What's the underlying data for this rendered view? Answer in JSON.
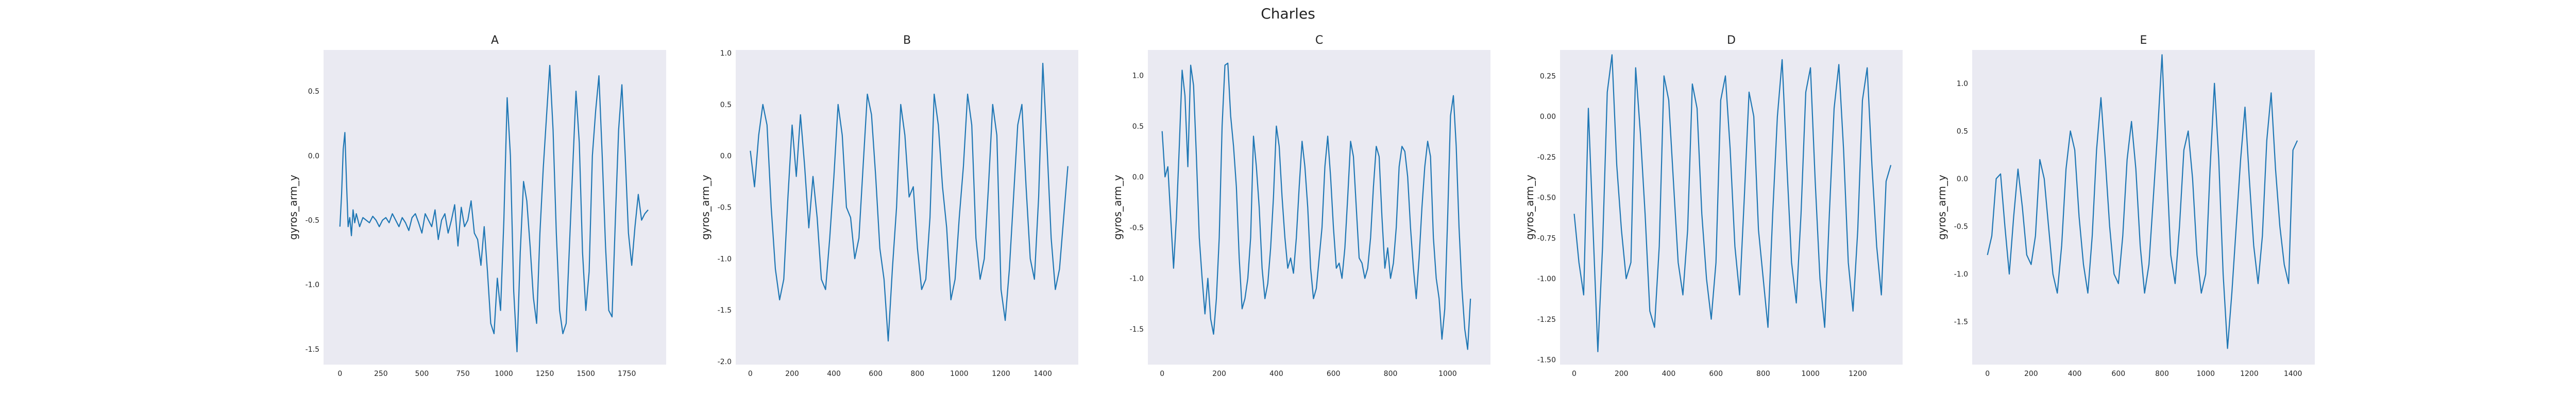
{
  "figure": {
    "suptitle": "Charles"
  },
  "style": {
    "panel_bg": "#eaeaf2",
    "line_color": "#1f77b4",
    "grid": false
  },
  "chart_data": [
    {
      "type": "line",
      "title": "A",
      "xlabel": "",
      "ylabel": "gyros_arm_y",
      "xlim": [
        -100,
        1990
      ],
      "ylim": [
        -1.62,
        0.82
      ],
      "xticks": [
        0,
        250,
        500,
        750,
        1000,
        1250,
        1500,
        1750
      ],
      "yticks": [
        -1.5,
        -1.0,
        -0.5,
        0.0,
        0.5
      ],
      "series": [
        {
          "x": [
            0,
            10,
            20,
            30,
            40,
            50,
            60,
            70,
            80,
            90,
            100,
            120,
            140,
            160,
            180,
            200,
            220,
            240,
            260,
            280,
            300,
            320,
            340,
            360,
            380,
            400,
            420,
            440,
            460,
            480,
            500,
            520,
            540,
            560,
            580,
            600,
            620,
            640,
            660,
            680,
            700,
            720,
            740,
            760,
            780,
            800,
            820,
            840,
            860,
            880,
            900,
            920,
            940,
            960,
            980,
            1000,
            1020,
            1040,
            1060,
            1080,
            1100,
            1120,
            1140,
            1160,
            1180,
            1200,
            1220,
            1240,
            1260,
            1280,
            1300,
            1320,
            1340,
            1360,
            1380,
            1400,
            1420,
            1440,
            1460,
            1480,
            1500,
            1520,
            1540,
            1560,
            1580,
            1600,
            1620,
            1640,
            1660,
            1680,
            1700,
            1720,
            1740,
            1760,
            1780,
            1800,
            1820,
            1840,
            1860,
            1880
          ],
          "y": [
            -0.55,
            -0.3,
            0.05,
            0.18,
            -0.2,
            -0.55,
            -0.48,
            -0.62,
            -0.42,
            -0.52,
            -0.45,
            -0.55,
            -0.48,
            -0.5,
            -0.52,
            -0.47,
            -0.5,
            -0.55,
            -0.5,
            -0.48,
            -0.52,
            -0.45,
            -0.5,
            -0.55,
            -0.48,
            -0.52,
            -0.58,
            -0.48,
            -0.45,
            -0.52,
            -0.6,
            -0.45,
            -0.5,
            -0.55,
            -0.42,
            -0.65,
            -0.5,
            -0.45,
            -0.6,
            -0.5,
            -0.38,
            -0.7,
            -0.4,
            -0.55,
            -0.5,
            -0.35,
            -0.6,
            -0.65,
            -0.85,
            -0.55,
            -0.9,
            -1.3,
            -1.38,
            -0.95,
            -1.2,
            -0.5,
            0.45,
            0.0,
            -1.05,
            -1.52,
            -0.75,
            -0.2,
            -0.35,
            -0.7,
            -1.1,
            -1.3,
            -0.6,
            -0.1,
            0.3,
            0.7,
            0.2,
            -0.6,
            -1.2,
            -1.38,
            -1.3,
            -0.7,
            -0.1,
            0.5,
            0.1,
            -0.75,
            -1.2,
            -0.9,
            0.0,
            0.35,
            0.62,
            0.0,
            -0.7,
            -1.2,
            -1.25,
            -0.5,
            0.2,
            0.55,
            0.0,
            -0.6,
            -0.85,
            -0.55,
            -0.3,
            -0.5,
            -0.45,
            -0.42
          ]
        }
      ]
    },
    {
      "type": "line",
      "title": "B",
      "xlabel": "",
      "ylabel": "gyros_arm_y",
      "xlim": [
        -70,
        1570
      ],
      "ylim": [
        -2.03,
        1.03
      ],
      "xticks": [
        0,
        200,
        400,
        600,
        800,
        1000,
        1200,
        1400
      ],
      "yticks": [
        -2.0,
        -1.5,
        -1.0,
        -0.5,
        0.0,
        0.5,
        1.0
      ],
      "series": [
        {
          "x": [
            0,
            20,
            40,
            60,
            80,
            100,
            120,
            140,
            160,
            180,
            200,
            220,
            240,
            260,
            280,
            300,
            320,
            340,
            360,
            380,
            400,
            420,
            440,
            460,
            480,
            500,
            520,
            540,
            560,
            580,
            600,
            620,
            640,
            660,
            680,
            700,
            720,
            740,
            760,
            780,
            800,
            820,
            840,
            860,
            880,
            900,
            920,
            940,
            960,
            980,
            1000,
            1020,
            1040,
            1060,
            1080,
            1100,
            1120,
            1140,
            1160,
            1180,
            1200,
            1220,
            1240,
            1260,
            1280,
            1300,
            1320,
            1340,
            1360,
            1380,
            1400,
            1420,
            1440,
            1460,
            1480,
            1500,
            1520
          ],
          "y": [
            0.05,
            -0.3,
            0.2,
            0.5,
            0.3,
            -0.5,
            -1.1,
            -1.4,
            -1.2,
            -0.4,
            0.3,
            -0.2,
            0.4,
            -0.1,
            -0.7,
            -0.2,
            -0.6,
            -1.2,
            -1.3,
            -0.8,
            -0.2,
            0.5,
            0.2,
            -0.5,
            -0.6,
            -1.0,
            -0.8,
            -0.1,
            0.6,
            0.4,
            -0.2,
            -0.9,
            -1.2,
            -1.8,
            -1.1,
            -0.5,
            0.5,
            0.2,
            -0.4,
            -0.3,
            -0.9,
            -1.3,
            -1.2,
            -0.6,
            0.6,
            0.3,
            -0.3,
            -0.7,
            -1.4,
            -1.2,
            -0.6,
            -0.1,
            0.6,
            0.3,
            -0.8,
            -1.2,
            -1.0,
            -0.3,
            0.5,
            0.2,
            -1.3,
            -1.6,
            -1.1,
            -0.4,
            0.3,
            0.5,
            -0.3,
            -1.0,
            -1.2,
            -0.4,
            0.9,
            0.1,
            -0.8,
            -1.3,
            -1.1,
            -0.6,
            -0.1
          ]
        }
      ]
    },
    {
      "type": "line",
      "title": "C",
      "xlabel": "",
      "ylabel": "gyros_arm_y",
      "xlim": [
        -50,
        1150
      ],
      "ylim": [
        -1.85,
        1.25
      ],
      "xticks": [
        0,
        200,
        400,
        600,
        800,
        1000
      ],
      "yticks": [
        -1.5,
        -1.0,
        -0.5,
        0.0,
        0.5,
        1.0
      ],
      "series": [
        {
          "x": [
            0,
            10,
            20,
            30,
            40,
            50,
            60,
            70,
            80,
            90,
            100,
            110,
            120,
            130,
            140,
            150,
            160,
            170,
            180,
            190,
            200,
            210,
            220,
            230,
            240,
            250,
            260,
            270,
            280,
            290,
            300,
            310,
            320,
            330,
            340,
            350,
            360,
            370,
            380,
            390,
            400,
            410,
            420,
            430,
            440,
            450,
            460,
            470,
            480,
            490,
            500,
            510,
            520,
            530,
            540,
            550,
            560,
            570,
            580,
            590,
            600,
            610,
            620,
            630,
            640,
            650,
            660,
            670,
            680,
            690,
            700,
            710,
            720,
            730,
            740,
            750,
            760,
            770,
            780,
            790,
            800,
            810,
            820,
            830,
            840,
            850,
            860,
            870,
            880,
            890,
            900,
            910,
            920,
            930,
            940,
            950,
            960,
            970,
            980,
            990,
            1000,
            1010,
            1020,
            1030,
            1040,
            1050,
            1060,
            1070,
            1080
          ],
          "y": [
            0.45,
            0.0,
            0.1,
            -0.4,
            -0.9,
            -0.4,
            0.3,
            1.05,
            0.8,
            0.1,
            1.1,
            0.9,
            0.2,
            -0.6,
            -1.0,
            -1.35,
            -1.0,
            -1.4,
            -1.55,
            -1.2,
            -0.6,
            0.5,
            1.1,
            1.12,
            0.6,
            0.3,
            -0.1,
            -0.8,
            -1.3,
            -1.2,
            -1.0,
            -0.6,
            0.4,
            0.1,
            -0.3,
            -0.9,
            -1.2,
            -1.05,
            -0.7,
            -0.2,
            0.5,
            0.3,
            -0.2,
            -0.6,
            -0.9,
            -0.8,
            -0.95,
            -0.6,
            -0.1,
            0.35,
            0.1,
            -0.3,
            -0.9,
            -1.2,
            -1.1,
            -0.8,
            -0.5,
            0.1,
            0.4,
            0.0,
            -0.5,
            -0.9,
            -0.85,
            -1.0,
            -0.7,
            -0.2,
            0.35,
            0.2,
            -0.3,
            -0.8,
            -0.85,
            -1.0,
            -0.9,
            -0.6,
            -0.1,
            0.3,
            0.2,
            -0.4,
            -0.9,
            -0.7,
            -1.0,
            -0.85,
            -0.5,
            0.1,
            0.3,
            0.25,
            0.0,
            -0.5,
            -0.9,
            -1.2,
            -0.8,
            -0.3,
            0.1,
            0.35,
            0.2,
            -0.6,
            -1.0,
            -1.2,
            -1.6,
            -1.3,
            -0.4,
            0.6,
            0.8,
            0.3,
            -0.5,
            -1.1,
            -1.5,
            -1.7,
            -1.2
          ]
        }
      ]
    },
    {
      "type": "line",
      "title": "D",
      "xlabel": "",
      "ylabel": "gyros_arm_y",
      "xlim": [
        -60,
        1390
      ],
      "ylim": [
        -1.53,
        0.41
      ],
      "xticks": [
        0,
        200,
        400,
        600,
        800,
        1000,
        1200
      ],
      "yticks": [
        -1.5,
        -1.25,
        -1.0,
        -0.75,
        -0.5,
        -0.25,
        0.0,
        0.25
      ],
      "series": [
        {
          "x": [
            0,
            20,
            40,
            60,
            80,
            100,
            120,
            140,
            160,
            180,
            200,
            220,
            240,
            260,
            280,
            300,
            320,
            340,
            360,
            380,
            400,
            420,
            440,
            460,
            480,
            500,
            520,
            540,
            560,
            580,
            600,
            620,
            640,
            660,
            680,
            700,
            720,
            740,
            760,
            780,
            800,
            820,
            840,
            860,
            880,
            900,
            920,
            940,
            960,
            980,
            1000,
            1020,
            1040,
            1060,
            1080,
            1100,
            1120,
            1140,
            1160,
            1180,
            1200,
            1220,
            1240,
            1260,
            1280,
            1300,
            1320,
            1340
          ],
          "y": [
            -0.6,
            -0.9,
            -1.1,
            0.05,
            -0.7,
            -1.45,
            -0.8,
            0.15,
            0.38,
            -0.3,
            -0.7,
            -1.0,
            -0.9,
            0.3,
            -0.1,
            -0.6,
            -1.2,
            -1.3,
            -0.8,
            0.25,
            0.1,
            -0.4,
            -0.9,
            -1.1,
            -0.7,
            0.2,
            0.05,
            -0.6,
            -1.0,
            -1.25,
            -0.9,
            0.1,
            0.25,
            -0.2,
            -0.8,
            -1.1,
            -0.5,
            0.15,
            0.0,
            -0.7,
            -1.0,
            -1.3,
            -0.6,
            0.0,
            0.35,
            -0.3,
            -0.9,
            -1.15,
            -0.6,
            0.15,
            0.3,
            -0.4,
            -1.0,
            -1.3,
            -0.6,
            0.05,
            0.32,
            -0.2,
            -0.9,
            -1.2,
            -0.7,
            0.1,
            0.3,
            -0.3,
            -0.8,
            -1.1,
            -0.4,
            -0.3
          ]
        }
      ]
    },
    {
      "type": "line",
      "title": "E",
      "xlabel": "",
      "ylabel": "gyros_arm_y",
      "xlim": [
        -70,
        1500
      ],
      "ylim": [
        -1.95,
        1.35
      ],
      "xticks": [
        0,
        200,
        400,
        600,
        800,
        1000,
        1200,
        1400
      ],
      "yticks": [
        -1.5,
        -1.0,
        -0.5,
        0.0,
        0.5,
        1.0
      ],
      "series": [
        {
          "x": [
            0,
            20,
            40,
            60,
            80,
            100,
            120,
            140,
            160,
            180,
            200,
            220,
            240,
            260,
            280,
            300,
            320,
            340,
            360,
            380,
            400,
            420,
            440,
            460,
            480,
            500,
            520,
            540,
            560,
            580,
            600,
            620,
            640,
            660,
            680,
            700,
            720,
            740,
            760,
            780,
            800,
            820,
            840,
            860,
            880,
            900,
            920,
            940,
            960,
            980,
            1000,
            1020,
            1040,
            1060,
            1080,
            1100,
            1120,
            1140,
            1160,
            1180,
            1200,
            1220,
            1240,
            1260,
            1280,
            1300,
            1320,
            1340,
            1360,
            1380,
            1400,
            1420
          ],
          "y": [
            -0.8,
            -0.6,
            0.0,
            0.05,
            -0.5,
            -1.0,
            -0.4,
            0.1,
            -0.3,
            -0.8,
            -0.9,
            -0.6,
            0.2,
            0.0,
            -0.5,
            -1.0,
            -1.2,
            -0.7,
            0.1,
            0.5,
            0.3,
            -0.4,
            -0.9,
            -1.2,
            -0.6,
            0.3,
            0.85,
            0.2,
            -0.5,
            -1.0,
            -1.1,
            -0.6,
            0.2,
            0.6,
            0.1,
            -0.7,
            -1.2,
            -0.9,
            -0.2,
            0.5,
            1.3,
            0.2,
            -0.8,
            -1.1,
            -0.5,
            0.3,
            0.5,
            0.0,
            -0.8,
            -1.2,
            -1.0,
            0.1,
            1.0,
            0.2,
            -1.0,
            -1.78,
            -1.2,
            -0.5,
            0.2,
            0.75,
            0.0,
            -0.7,
            -1.1,
            -0.6,
            0.4,
            0.9,
            0.1,
            -0.5,
            -0.9,
            -1.1,
            0.3,
            0.4
          ]
        }
      ]
    }
  ]
}
